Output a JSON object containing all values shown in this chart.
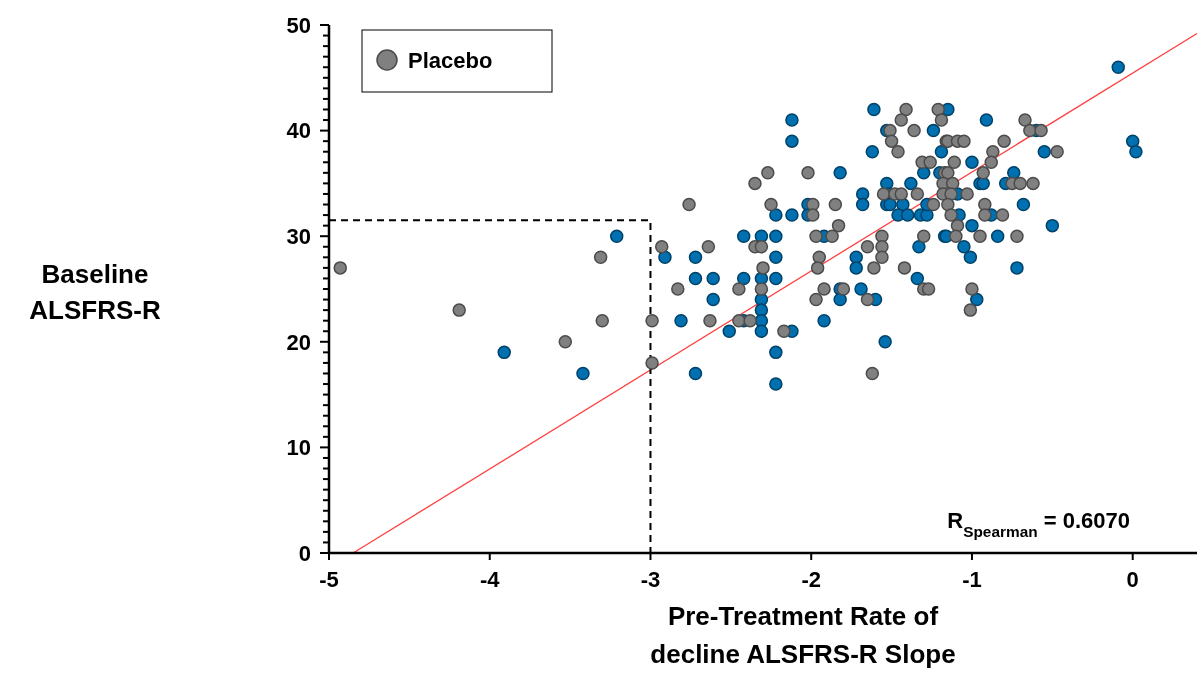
{
  "chart_data": {
    "type": "scatter",
    "xlabel": "Pre-Treatment Rate of decline ALSFRS-R Slope",
    "ylabel": "Baseline ALSFRS-R",
    "xlim": [
      -5,
      0.4
    ],
    "xticks": [
      -5,
      -4,
      -3,
      -2,
      -1,
      0
    ],
    "ylim": [
      0,
      50
    ],
    "yticks": [
      0,
      {
        "value": 1,
        "label": null
      },
      {
        "value": 2,
        "label": null
      },
      {
        "value": 3,
        "label": null
      },
      {
        "value": 4,
        "label": null
      },
      {
        "value": 5,
        "label": null
      },
      {
        "value": 6,
        "label": null
      },
      {
        "value": 7,
        "label": null
      },
      {
        "value": 8,
        "label": null
      },
      {
        "value": 9,
        "label": null
      },
      10,
      {
        "value": 11,
        "label": null
      },
      {
        "value": 12,
        "label": null
      },
      {
        "value": 13,
        "label": null
      },
      {
        "value": 14,
        "label": null
      },
      {
        "value": 15,
        "label": null
      },
      {
        "value": 16,
        "label": null
      },
      {
        "value": 17,
        "label": null
      },
      {
        "value": 18,
        "label": null
      },
      {
        "value": 19,
        "label": null
      },
      20,
      {
        "value": 21,
        "label": null
      },
      {
        "value": 22,
        "label": null
      },
      {
        "value": 23,
        "label": null
      },
      {
        "value": 24,
        "label": null
      },
      {
        "value": 25,
        "label": null
      },
      {
        "value": 26,
        "label": null
      },
      {
        "value": 27,
        "label": null
      },
      {
        "value": 28,
        "label": null
      },
      {
        "value": 29,
        "label": null
      },
      30,
      {
        "value": 31,
        "label": null
      },
      {
        "value": 32,
        "label": null
      },
      {
        "value": 33,
        "label": null
      },
      {
        "value": 34,
        "label": null
      },
      {
        "value": 35,
        "label": null
      },
      {
        "value": 36,
        "label": null
      },
      {
        "value": 37,
        "label": null
      },
      {
        "value": 38,
        "label": null
      },
      {
        "value": 39,
        "label": null
      },
      40,
      {
        "value": 41,
        "label": null
      },
      {
        "value": 42,
        "label": null
      },
      {
        "value": 43,
        "label": null
      },
      {
        "value": 44,
        "label": null
      },
      {
        "value": 45,
        "label": null
      },
      {
        "value": 46,
        "label": null
      },
      {
        "value": 47,
        "label": null
      },
      {
        "value": 48,
        "label": null
      },
      {
        "value": 49,
        "label": null
      },
      50
    ],
    "grid": false,
    "legend": "top left",
    "annotations": [
      "R$_{Spearman}$ = 0.6070"
    ],
    "series": [
      {
        "type": "line",
        "color": "#ff4040",
        "marker": "none",
        "line_style": "solid",
        "x": [
          -4.85,
          0.4
        ],
        "values": [
          0,
          49.2
        ]
      },
      {
        "type": "line",
        "color": "#000000",
        "marker": "none",
        "line_style": "dashed",
        "x": [
          -5,
          -3,
          -3
        ],
        "values": [
          31.5,
          31.5,
          0
        ]
      },
      {
        "type": "scatter",
        "color": "#0070b0",
        "marker": "circle",
        "x": [
          -3.91,
          -3.42,
          -3.21,
          -2.91,
          -2.72,
          -2.72,
          -2.81,
          -2.72,
          -1.82,
          -2.22,
          -2.12,
          -2.02,
          -2.02,
          -1.53,
          -1.38,
          -1.3,
          -1.68,
          -1.68,
          -1.52,
          -1.53,
          -1.51,
          -1.43,
          -1.46,
          -1.4,
          -1.32,
          -1.28,
          -1.28,
          -2.42,
          -2.31,
          -2.22,
          -1.92,
          -1.17,
          -1.33,
          -2.22,
          -1.72,
          -1.72,
          -2.61,
          -2.42,
          -2.31,
          -2.22,
          -1.34,
          -1.82,
          -1.69,
          -2.61,
          -2.31,
          -1.82,
          -1.6,
          -2.31,
          -2.42,
          -2.31,
          -1.92,
          -2.51,
          -2.31,
          -2.12,
          -1.54,
          -2.22,
          -2.22,
          -1.61,
          -1.15,
          -2.12,
          -2.12,
          -1.53,
          -1.24,
          -1.62,
          -1.19,
          -1.2,
          -0.91,
          -0.6,
          0.0,
          0.02,
          -0.09,
          -0.55,
          -1.0,
          -0.74,
          -0.95,
          -0.93,
          -0.79,
          -1.09,
          -0.68,
          -1.08,
          -0.88,
          -1.0,
          -0.5,
          -1.16,
          -0.84,
          -1.05,
          -1.01,
          -0.72,
          -0.97
        ],
        "values": [
          19,
          17,
          30,
          28,
          28,
          26,
          22,
          17,
          36,
          32,
          32,
          33,
          32,
          35,
          35,
          36,
          34,
          33,
          34,
          33,
          33,
          33,
          32,
          32,
          32,
          32,
          33,
          30,
          30,
          30,
          30,
          30,
          29,
          28,
          28,
          27,
          26,
          26,
          26,
          26,
          26,
          25,
          25,
          24,
          24,
          24,
          24,
          23,
          22,
          22,
          22,
          21,
          21,
          21,
          20,
          19,
          16,
          42,
          42,
          41,
          39,
          40,
          40,
          38,
          38,
          36,
          41,
          40,
          39,
          38,
          46,
          38,
          37,
          36,
          35,
          35,
          35,
          34,
          33,
          32,
          32,
          31,
          31,
          30,
          30,
          29,
          28,
          27,
          24
        ]
      },
      {
        "type": "scatter",
        "name": "Placebo",
        "color": "#808080",
        "marker": "circle",
        "x": [
          -4.93,
          -4.19,
          -3.53,
          -3.31,
          -3.3,
          -2.99,
          -2.99,
          -2.93,
          -2.76,
          -2.83,
          -2.27,
          -2.35,
          -2.02,
          -2.25,
          -1.99,
          -1.99,
          -1.85,
          -1.83,
          -1.55,
          -1.48,
          -1.44,
          -1.34,
          -1.24,
          -1.97,
          -1.87,
          -1.56,
          -1.3,
          -2.64,
          -2.35,
          -2.31,
          -1.65,
          -1.56,
          -1.95,
          -1.56,
          -2.3,
          -1.96,
          -1.61,
          -1.42,
          -2.45,
          -2.31,
          -1.92,
          -1.8,
          -1.3,
          -1.27,
          -1.97,
          -1.65,
          -2.63,
          -2.45,
          -2.38,
          -2.17,
          -1.62,
          -1.41,
          -1.21,
          -1.44,
          -1.19,
          -1.51,
          -1.36,
          -1.5,
          -1.16,
          -1.46,
          -1.31,
          -1.26,
          -1.17,
          -0.67,
          -0.64,
          -0.57,
          -1.15,
          -1.09,
          -1.05,
          -0.8,
          -0.87,
          -0.47,
          -1.11,
          -0.88,
          -1.15,
          -0.93,
          -1.18,
          -1.12,
          -0.75,
          -0.7,
          -0.62,
          -1.18,
          -1.13,
          -1.03,
          -1.15,
          -0.92,
          -1.13,
          -0.92,
          -0.81,
          -1.09,
          -1.1,
          -0.95,
          -0.72,
          -1.0,
          -1.01
        ],
        "values": [
          27,
          23,
          20,
          28,
          22,
          22,
          18,
          29,
          33,
          25,
          36,
          35,
          36,
          33,
          33,
          32,
          33,
          31,
          34,
          34,
          34,
          34,
          33,
          30,
          30,
          30,
          30,
          29,
          29,
          29,
          29,
          29,
          28,
          28,
          27,
          27,
          27,
          27,
          25,
          25,
          25,
          25,
          25,
          25,
          24,
          24,
          22,
          22,
          22,
          21,
          17,
          42,
          42,
          41,
          41,
          40,
          40,
          39,
          39,
          38,
          37,
          37,
          36,
          41,
          40,
          40,
          39,
          39,
          39,
          39,
          38,
          38,
          37,
          37,
          36,
          36,
          35,
          35,
          35,
          35,
          35,
          34,
          34,
          34,
          33,
          33,
          32,
          32,
          32,
          31,
          30,
          30,
          30,
          25,
          23
        ]
      }
    ]
  }
}
